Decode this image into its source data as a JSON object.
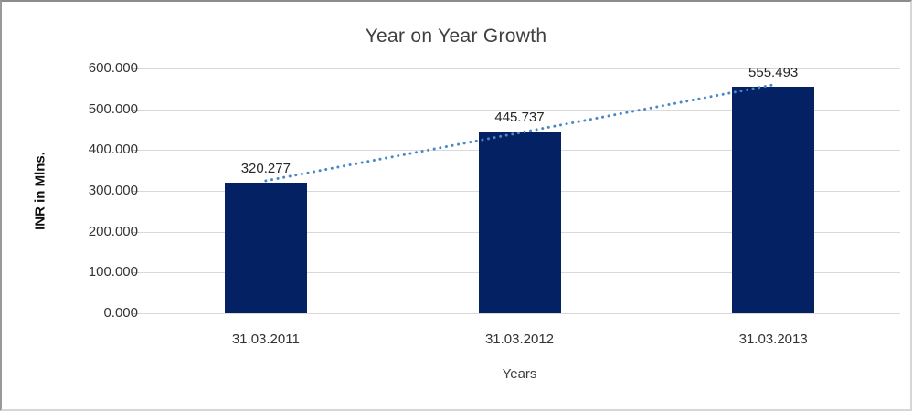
{
  "chart_data": {
    "type": "bar",
    "title": "Year on Year Growth",
    "xlabel": "Years",
    "ylabel": "INR in Mlns.",
    "categories": [
      "31.03.2011",
      "31.03.2012",
      "31.03.2013"
    ],
    "values": [
      320.277,
      445.737,
      555.493
    ],
    "data_labels": [
      "320.277",
      "445.737",
      "555.493"
    ],
    "ylim": [
      0,
      600
    ],
    "yticks": [
      0,
      100,
      200,
      300,
      400,
      500,
      600
    ],
    "ytick_labels": [
      "0.000",
      "100.000",
      "200.000",
      "300.000",
      "400.000",
      "500.000",
      "600.000"
    ],
    "grid": "horizontal",
    "legend": "none",
    "trendline": {
      "type": "linear",
      "style": "dotted"
    },
    "colors": {
      "bar": "#042263",
      "trendline": "#4a86c8",
      "gridline": "#d9d9d9",
      "title_text": "#3f3f3f",
      "axis_text": "#333333"
    }
  }
}
